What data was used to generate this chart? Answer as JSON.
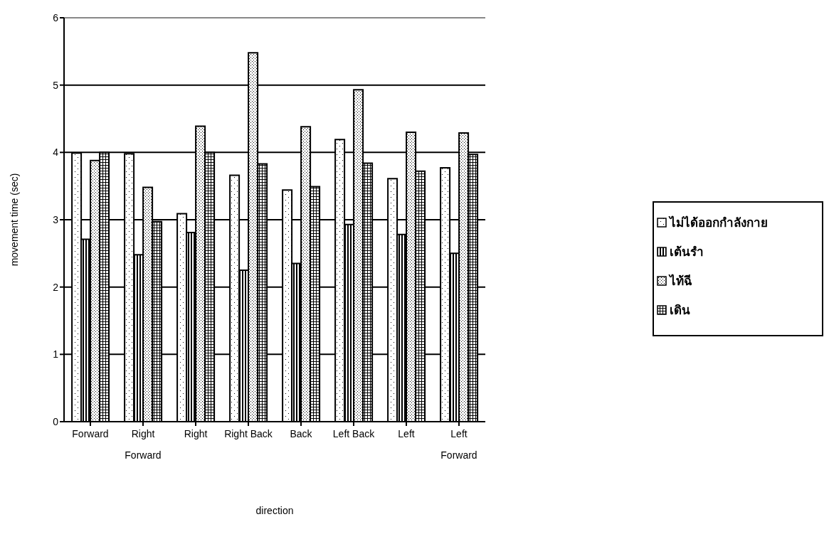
{
  "chart_data": {
    "type": "bar",
    "xlabel": "direction",
    "ylabel": "movement time (sec)",
    "categories": [
      "Forward",
      "Right Forward",
      "Right",
      "Right Back",
      "Back",
      "Left Back",
      "Left",
      "Left Forward"
    ],
    "series": [
      {
        "name": "ไม่ได้ออกกำลังกาย",
        "color": "#000000",
        "values": [
          3.99,
          3.98,
          3.09,
          3.66,
          3.44,
          4.19,
          3.61,
          3.77
        ]
      },
      {
        "name": "เต้นรำ",
        "color": "#000000",
        "values": [
          2.71,
          2.48,
          2.81,
          2.25,
          2.35,
          2.93,
          2.78,
          2.5
        ]
      },
      {
        "name": "ไท้ฉี",
        "color": "#000000",
        "values": [
          3.88,
          3.48,
          4.39,
          5.48,
          4.38,
          4.93,
          4.3,
          4.29
        ]
      },
      {
        "name": "เดิน",
        "color": "#000000",
        "values": [
          4.0,
          2.97,
          4.0,
          3.83,
          3.49,
          3.84,
          3.72,
          3.97
        ]
      }
    ],
    "ylim": [
      0,
      6
    ],
    "yticks": [
      0,
      1,
      2,
      3,
      4,
      5,
      6
    ],
    "grid": "y",
    "legend": "right"
  }
}
